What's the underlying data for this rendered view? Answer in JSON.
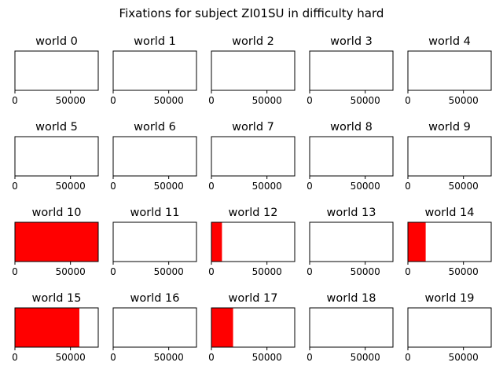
{
  "suptitle": "Fixations for subject ZI01SU in difficulty hard",
  "chart_data": {
    "type": "bar",
    "layout": "grid 4 rows x 5 columns",
    "xlim": [
      0,
      75000
    ],
    "x_ticks": [
      0,
      50000
    ],
    "y_ticks": [],
    "bar_color": "#ff0000",
    "panels": [
      {
        "title": "world 0",
        "fixation_extent": [
          0,
          0
        ]
      },
      {
        "title": "world 1",
        "fixation_extent": [
          0,
          0
        ]
      },
      {
        "title": "world 2",
        "fixation_extent": [
          0,
          0
        ]
      },
      {
        "title": "world 3",
        "fixation_extent": [
          0,
          0
        ]
      },
      {
        "title": "world 4",
        "fixation_extent": [
          0,
          0
        ]
      },
      {
        "title": "world 5",
        "fixation_extent": [
          0,
          0
        ]
      },
      {
        "title": "world 6",
        "fixation_extent": [
          0,
          0
        ]
      },
      {
        "title": "world 7",
        "fixation_extent": [
          0,
          0
        ]
      },
      {
        "title": "world 8",
        "fixation_extent": [
          0,
          0
        ]
      },
      {
        "title": "world 9",
        "fixation_extent": [
          0,
          0
        ]
      },
      {
        "title": "world 10",
        "fixation_extent": [
          0,
          75000
        ]
      },
      {
        "title": "world 11",
        "fixation_extent": [
          0,
          0
        ]
      },
      {
        "title": "world 12",
        "fixation_extent": [
          0,
          9500
        ]
      },
      {
        "title": "world 13",
        "fixation_extent": [
          0,
          0
        ]
      },
      {
        "title": "world 14",
        "fixation_extent": [
          0,
          16000
        ]
      },
      {
        "title": "world 15",
        "fixation_extent": [
          0,
          58000
        ]
      },
      {
        "title": "world 16",
        "fixation_extent": [
          0,
          0
        ]
      },
      {
        "title": "world 17",
        "fixation_extent": [
          0,
          19500
        ]
      },
      {
        "title": "world 18",
        "fixation_extent": [
          0,
          0
        ]
      },
      {
        "title": "world 19",
        "fixation_extent": [
          0,
          0
        ]
      }
    ]
  }
}
